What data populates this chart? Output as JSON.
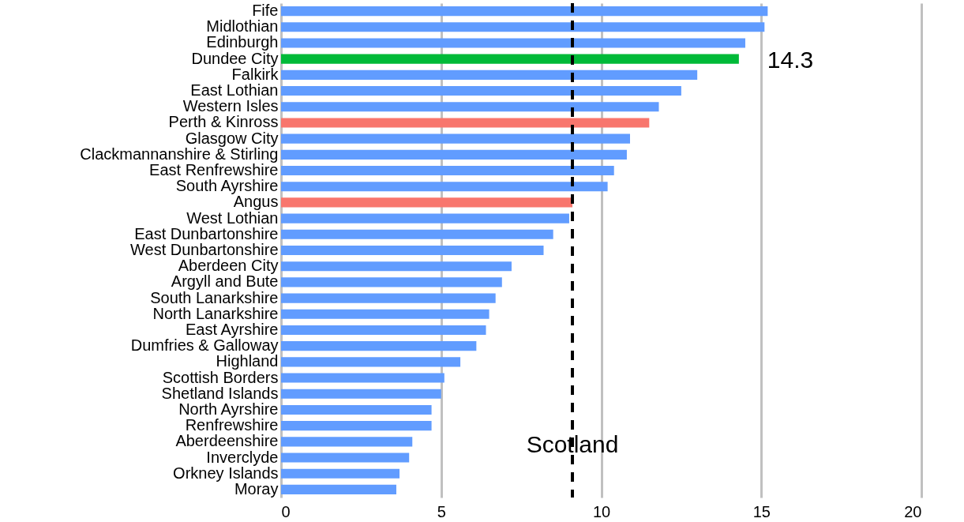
{
  "chart_data": {
    "type": "bar",
    "orientation": "horizontal",
    "categories": [
      "Fife",
      "Midlothian",
      "Edinburgh",
      "Dundee City",
      "Falkirk",
      "East Lothian",
      "Western Isles",
      "Perth & Kinross",
      "Glasgow City",
      "Clackmannanshire & Stirling",
      "East Renfrewshire",
      "South Ayrshire",
      "Angus",
      "West Lothian",
      "East Dunbartonshire",
      "West Dunbartonshire",
      "Aberdeen City",
      "Argyll and Bute",
      "South Lanarkshire",
      "North Lanarkshire",
      "East Ayrshire",
      "Dumfries & Galloway",
      "Highland",
      "Scottish Borders",
      "Shetland Islands",
      "North Ayrshire",
      "Renfrewshire",
      "Aberdeenshire",
      "Inverclyde",
      "Orkney Islands",
      "Moray"
    ],
    "values": [
      15.2,
      15.1,
      14.5,
      14.3,
      13.0,
      12.5,
      11.8,
      11.5,
      10.9,
      10.8,
      10.4,
      10.2,
      9.1,
      9.0,
      8.5,
      8.2,
      7.2,
      6.9,
      6.7,
      6.5,
      6.4,
      6.1,
      5.6,
      5.1,
      5.0,
      4.7,
      4.7,
      4.1,
      4.0,
      3.7,
      3.6
    ],
    "colors": [
      "#619cff",
      "#619cff",
      "#619cff",
      "#00ba38",
      "#619cff",
      "#619cff",
      "#619cff",
      "#f8766d",
      "#619cff",
      "#619cff",
      "#619cff",
      "#619cff",
      "#f8766d",
      "#619cff",
      "#619cff",
      "#619cff",
      "#619cff",
      "#619cff",
      "#619cff",
      "#619cff",
      "#619cff",
      "#619cff",
      "#619cff",
      "#619cff",
      "#619cff",
      "#619cff",
      "#619cff",
      "#619cff",
      "#619cff",
      "#619cff",
      "#619cff"
    ],
    "xlim": [
      0,
      20
    ],
    "xticks": [
      0,
      5,
      10,
      15,
      20
    ],
    "grid": "x",
    "ref_lines": [
      {
        "axis": "x",
        "value": 9.1,
        "label": "Scotland",
        "color": "#000000",
        "line_style": "dashed"
      }
    ],
    "annotations": [
      {
        "text": "14.3",
        "x": 14.3,
        "y": "Dundee City"
      }
    ]
  }
}
